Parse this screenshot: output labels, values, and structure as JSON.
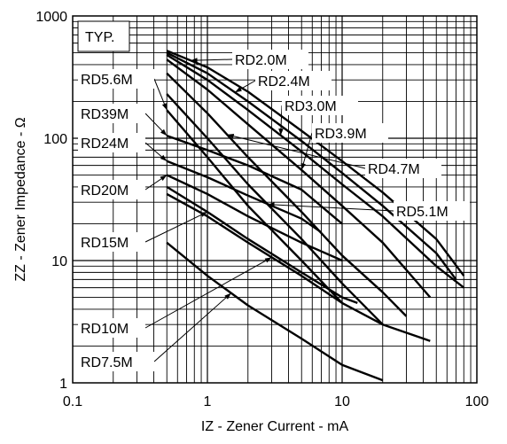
{
  "chart_data": {
    "type": "line",
    "title": "",
    "annotation": "TYP.",
    "xlabel": "IZ - Zener Current - mA",
    "ylabel": "ZZ - Zener Impedance - Ω",
    "x_scale": "log",
    "y_scale": "log",
    "xlim": [
      0.1,
      100
    ],
    "ylim": [
      1,
      1000
    ],
    "x_ticks": [
      "0.1",
      "1",
      "10",
      "100"
    ],
    "y_ticks": [
      "1",
      "10",
      "100",
      "1000"
    ],
    "grid": true,
    "series": [
      {
        "name": "RD2.0M",
        "x": [
          0.5,
          1,
          2,
          5,
          10,
          20,
          50,
          80
        ],
        "y": [
          520,
          380,
          240,
          115,
          65,
          36,
          15,
          7.5
        ]
      },
      {
        "name": "RD2.4M",
        "x": [
          0.5,
          1,
          2,
          5,
          10,
          20,
          50,
          70
        ],
        "y": [
          500,
          340,
          200,
          95,
          52,
          28,
          11.5,
          7
        ]
      },
      {
        "name": "RD3.0M",
        "x": [
          0.5,
          1,
          2,
          5,
          10,
          20,
          50,
          80
        ],
        "y": [
          480,
          300,
          170,
          78,
          42,
          23,
          9,
          6
        ]
      },
      {
        "name": "RD3.9M",
        "x": [
          0.5,
          1,
          2,
          5,
          10,
          20,
          45
        ],
        "y": [
          440,
          250,
          130,
          55,
          28,
          14,
          5
        ]
      },
      {
        "name": "RD4.7M",
        "x": [
          0.5,
          1,
          2,
          5,
          10,
          20,
          30
        ],
        "y": [
          340,
          160,
          70,
          25,
          11,
          5.5,
          3.5
        ]
      },
      {
        "name": "RD5.1M",
        "x": [
          0.5,
          1,
          2,
          5,
          10,
          20
        ],
        "y": [
          230,
          100,
          42,
          15,
          6.5,
          3
        ]
      },
      {
        "name": "RD5.6M",
        "x": [
          0.5,
          1,
          2,
          5,
          10
        ],
        "y": [
          170,
          70,
          28,
          10,
          4.5
        ]
      },
      {
        "name": "RD39M",
        "x": [
          0.5,
          1,
          2,
          5,
          10
        ],
        "y": [
          105,
          80,
          60,
          38,
          20
        ]
      },
      {
        "name": "RD24M",
        "x": [
          0.5,
          1,
          2,
          5,
          7
        ],
        "y": [
          65,
          48,
          34,
          22,
          17
        ]
      },
      {
        "name": "RD20M",
        "x": [
          0.5,
          1,
          2,
          5,
          10
        ],
        "y": [
          50,
          35,
          23,
          14,
          10
        ]
      },
      {
        "name": "RD15M",
        "x": [
          0.5,
          1,
          2,
          5,
          10,
          13
        ],
        "y": [
          40,
          25,
          15,
          8,
          5,
          4.5
        ]
      },
      {
        "name": "RD10M",
        "x": [
          0.5,
          1,
          2,
          5,
          10,
          20,
          45
        ],
        "y": [
          35,
          23,
          14,
          7.5,
          4.5,
          3,
          2.2
        ]
      },
      {
        "name": "RD7.5M",
        "x": [
          0.5,
          1,
          2,
          5,
          10,
          20
        ],
        "y": [
          14,
          7.5,
          4.3,
          2.3,
          1.4,
          1.05
        ]
      }
    ],
    "labels": [
      "RD2.0M",
      "RD2.4M",
      "RD3.0M",
      "RD3.9M",
      "RD4.7M",
      "RD5.1M",
      "RD5.6M",
      "RD39M",
      "RD24M",
      "RD20M",
      "RD15M",
      "RD10M",
      "RD7.5M"
    ]
  }
}
